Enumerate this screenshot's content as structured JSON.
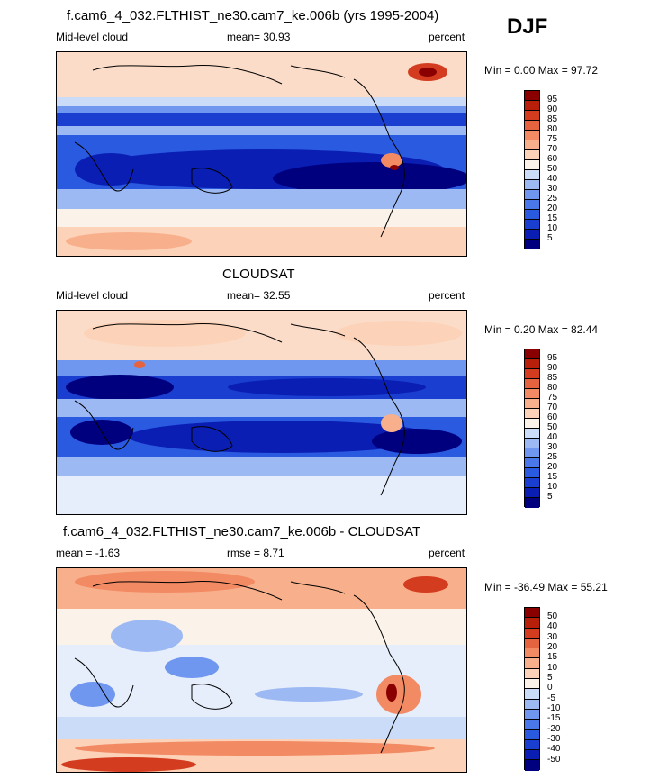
{
  "season": "DJF",
  "panels": [
    {
      "title": "f.cam6_4_032.FLTHIST_ne30.cam7_ke.006b (yrs 1995-2004)",
      "left_label": "Mid-level cloud",
      "center_label": "mean=  30.93",
      "right_label": "percent",
      "minmax": "Min =   0.00 Max =  97.72",
      "colorbar_labels": [
        "95",
        "90",
        "85",
        "80",
        "75",
        "70",
        "60",
        "50",
        "40",
        "30",
        "25",
        "20",
        "15",
        "10",
        "5"
      ]
    },
    {
      "title": "CLOUDSAT",
      "left_label": "Mid-level cloud",
      "center_label": "mean=  32.55",
      "right_label": "percent",
      "minmax": "Min =   0.20 Max =  82.44",
      "colorbar_labels": [
        "95",
        "90",
        "85",
        "80",
        "75",
        "70",
        "60",
        "50",
        "40",
        "30",
        "25",
        "20",
        "15",
        "10",
        "5"
      ]
    },
    {
      "title": "f.cam6_4_032.FLTHIST_ne30.cam7_ke.006b - CLOUDSAT",
      "left_label": "mean =  -1.63",
      "center_label": "rmse =    8.71",
      "right_label": "percent",
      "minmax": "Min = -36.49 Max =  55.21",
      "colorbar_labels": [
        "50",
        "40",
        "30",
        "20",
        "15",
        "10",
        "5",
        "0",
        "-5",
        "-10",
        "-15",
        "-20",
        "-30",
        "-40",
        "-50"
      ]
    }
  ],
  "chart_data": [
    {
      "type": "heatmap",
      "title": "f.cam6_4_032.FLTHIST_ne30.cam7_ke.006b (yrs 1995-2004)",
      "subtitle": "Mid-level cloud",
      "units": "percent",
      "mean": 30.93,
      "min": 0.0,
      "max": 97.72,
      "contour_levels": [
        5,
        10,
        15,
        20,
        25,
        30,
        40,
        50,
        60,
        70,
        75,
        80,
        85,
        90,
        95
      ],
      "colors": [
        "#00007f",
        "#0a1eb4",
        "#1a3fd0",
        "#2a5ae0",
        "#4a78ea",
        "#6f97ef",
        "#9cb9f4",
        "#cbdcf8",
        "#fbf3ea",
        "#fcd3b8",
        "#f8b08c",
        "#f28a64",
        "#e6633f",
        "#d43c1f",
        "#b81f0a",
        "#8a0000"
      ]
    },
    {
      "type": "heatmap",
      "title": "CLOUDSAT",
      "subtitle": "Mid-level cloud",
      "units": "percent",
      "mean": 32.55,
      "min": 0.2,
      "max": 82.44,
      "contour_levels": [
        5,
        10,
        15,
        20,
        25,
        30,
        40,
        50,
        60,
        70,
        75,
        80,
        85,
        90,
        95
      ],
      "colors": [
        "#00007f",
        "#0a1eb4",
        "#1a3fd0",
        "#2a5ae0",
        "#4a78ea",
        "#6f97ef",
        "#9cb9f4",
        "#cbdcf8",
        "#fbf3ea",
        "#fcd3b8",
        "#f8b08c",
        "#f28a64",
        "#e6633f",
        "#d43c1f",
        "#b81f0a",
        "#8a0000"
      ]
    },
    {
      "type": "heatmap",
      "title": "f.cam6_4_032.FLTHIST_ne30.cam7_ke.006b - CLOUDSAT",
      "units": "percent",
      "mean": -1.63,
      "rmse": 8.71,
      "min": -36.49,
      "max": 55.21,
      "contour_levels": [
        -50,
        -40,
        -30,
        -20,
        -15,
        -10,
        -5,
        0,
        5,
        10,
        15,
        20,
        30,
        40,
        50
      ],
      "colors": [
        "#00007f",
        "#0a1eb4",
        "#1a3fd0",
        "#2a5ae0",
        "#4a78ea",
        "#6f97ef",
        "#9cb9f4",
        "#cbdcf8",
        "#fbf3ea",
        "#fcd3b8",
        "#f8b08c",
        "#f28a64",
        "#e6633f",
        "#d43c1f",
        "#b81f0a",
        "#8a0000"
      ]
    }
  ]
}
